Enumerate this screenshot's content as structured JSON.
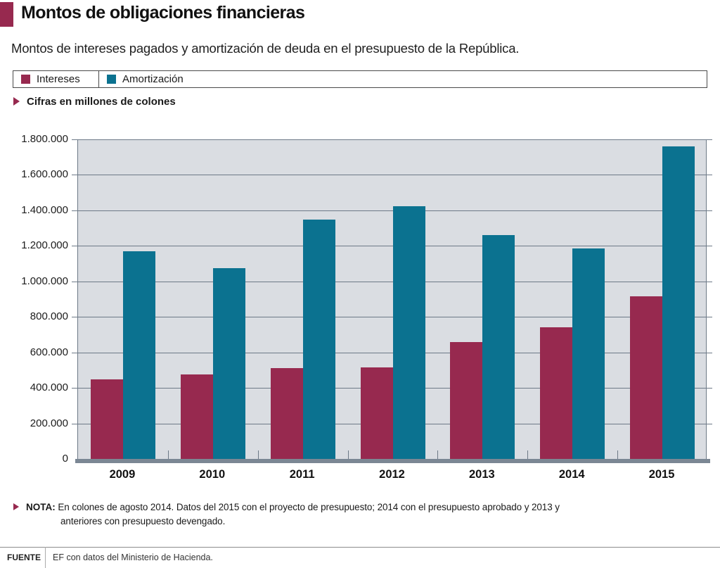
{
  "header": {
    "title": "Montos de obligaciones financieras",
    "subtitle": "Montos de intereses pagados y amortización de deuda en el presupuesto de la República."
  },
  "legend": {
    "items": [
      {
        "label": "Intereses",
        "color": "#97294F"
      },
      {
        "label": "Amortización",
        "color": "#0B7290"
      }
    ]
  },
  "units_note": "Cifras en millones de colones",
  "chart_data": {
    "type": "bar",
    "title": "Montos de obligaciones financieras",
    "subtitle": "Montos de intereses pagados y amortización de deuda en el presupuesto de la República.",
    "categories": [
      "2009",
      "2010",
      "2011",
      "2012",
      "2013",
      "2014",
      "2015"
    ],
    "series": [
      {
        "name": "Intereses",
        "color": "#97294F",
        "values": [
          450000,
          475000,
          510000,
          515000,
          660000,
          740000,
          915000
        ]
      },
      {
        "name": "Amortización",
        "color": "#0B7290",
        "values": [
          1170000,
          1075000,
          1350000,
          1425000,
          1260000,
          1185000,
          1760000
        ]
      }
    ],
    "xlabel": "",
    "ylabel": "Cifras en millones de colones",
    "ylim": [
      0,
      1800000
    ],
    "ytick_step": 200000,
    "ytick_labels_top_to_bottom": [
      "1.800.000",
      "1.600.000",
      "1.400.000",
      "1.200.000",
      "1.000.000",
      "800.000",
      "600.000",
      "400.000",
      "200.000",
      "0"
    ],
    "grid": true,
    "legend_position": "top"
  },
  "note": {
    "label": "NOTA:",
    "text": "En colones de agosto 2014. Datos del 2015 con el proyecto de presupuesto; 2014 con el presupuesto aprobado y 2013 y anteriores con presupuesto devengado."
  },
  "source": {
    "label": "FUENTE",
    "text": "EF con datos del Ministerio de Hacienda."
  },
  "colors": {
    "accent": "#97294F",
    "intereses_bar": "#97294F",
    "amortizacion_bar": "#0B7290",
    "plot_background": "#DADDE2",
    "gridline": "#6D7987",
    "baseline_strip": "#7B8794"
  }
}
